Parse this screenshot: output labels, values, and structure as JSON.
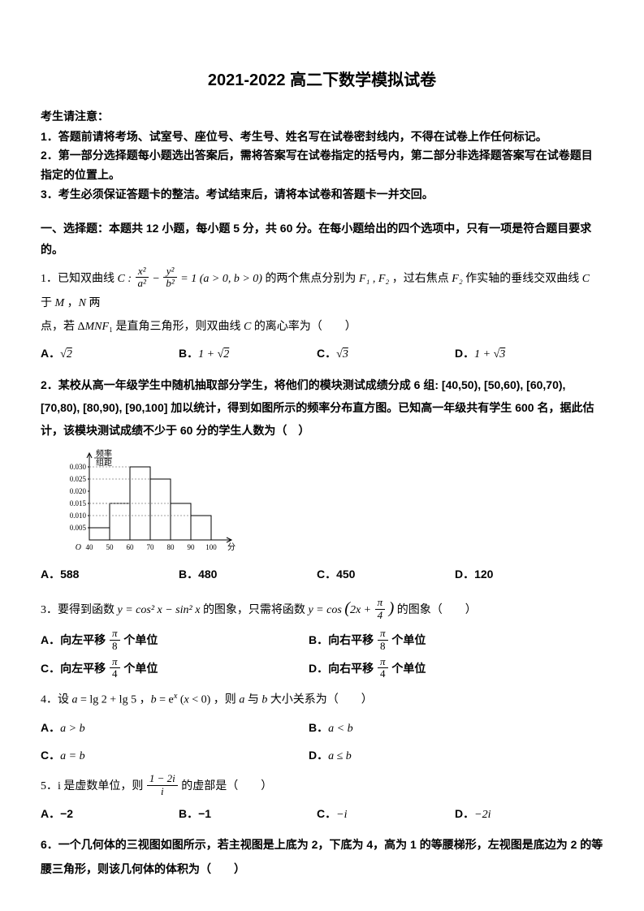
{
  "title": "2021-2022 高二下数学模拟试卷",
  "notice": {
    "head": "考生请注意：",
    "lines": [
      "1．答题前请将考场、试室号、座位号、考生号、姓名写在试卷密封线内，不得在试卷上作任何标记。",
      "2．第一部分选择题每小题选出答案后，需将答案写在试卷指定的括号内，第二部分非选择题答案写在试卷题目指定的位置上。",
      "3．考生必须保证答题卡的整洁。考试结束后，请将本试卷和答题卡一并交回。"
    ]
  },
  "section1": "一、选择题：本题共 12 小题，每小题 5 分，共 60 分。在每小题给出的四个选项中，只有一项是符合题目要求的。",
  "q1": {
    "stem_a": "1．已知双曲线 ",
    "stem_b": " 的两个焦点分别为 ",
    "stem_c": " 作实轴的垂线交双曲线 ",
    "stem_d": "点，若 △MNF₁ 是直角三角形，则双曲线 C 的离心率为（　　）",
    "A": "A．",
    "B": "B．",
    "C": "C．",
    "D": "D．"
  },
  "q2": {
    "stem": "2．某校从高一年级学生中随机抽取部分学生，将他们的模块测试成绩分成 6 组: [40,50), [50,60), [60,70), [70,80), [80,90), [90,100] 加以统计，得到如图所示的频率分布直方图。已知高一年级共有学生 600 名，据此估计，该模块测试成绩不少于 60 分的学生人数为（　）",
    "A": "A．588",
    "B": "B．480",
    "C": "C．450",
    "D": "D．120",
    "histogram": {
      "ylabel": "频率\n组距",
      "xlabel": "分数",
      "yticks": [
        "0.005",
        "0.010",
        "0.015",
        "0.020",
        "0.025",
        "0.030"
      ],
      "xticks": [
        "40",
        "50",
        "60",
        "70",
        "80",
        "90",
        "100"
      ],
      "bars": [
        0.005,
        0.015,
        0.03,
        0.025,
        0.015,
        0.01
      ],
      "axis_color": "#000000",
      "grid_color": "#808080",
      "bar_color": "#ffffff",
      "bar_border": "#000000",
      "background": "#ffffff"
    }
  },
  "q3": {
    "stem_a": "3．要得到函数 ",
    "stem_b": " 的图象，只需将函数 ",
    "stem_c": " 的图象（　　）",
    "A_pre": "A．向左平移 ",
    "A_post": " 个单位",
    "B_pre": "B．向右平移 ",
    "B_post": " 个单位",
    "C_pre": "C．向左平移 ",
    "C_post": " 个单位",
    "D_pre": "D．向右平移 ",
    "D_post": " 个单位"
  },
  "q4": {
    "stem": "4．设 a = lg 2 + lg 5 ，b = eˣ (x < 0) ，则 a 与 b 大小关系为（　　）",
    "A": "A．a > b",
    "B": "B．a < b",
    "C": "C．a = b",
    "D": "D．a ≤ b"
  },
  "q5": {
    "stem_a": "5．i 是虚数单位，则 ",
    "stem_b": " 的虚部是（　　）",
    "A": "A．−2",
    "B": "B．−1",
    "C": "C．−i",
    "D": "D．−2i"
  },
  "q6": {
    "stem": "6．一个几何体的三视图如图所示，若主视图是上底为 2，下底为 4，高为 1 的等腰梯形，左视图是底边为 2 的等腰三角形，则该几何体的体积为（　　）"
  }
}
